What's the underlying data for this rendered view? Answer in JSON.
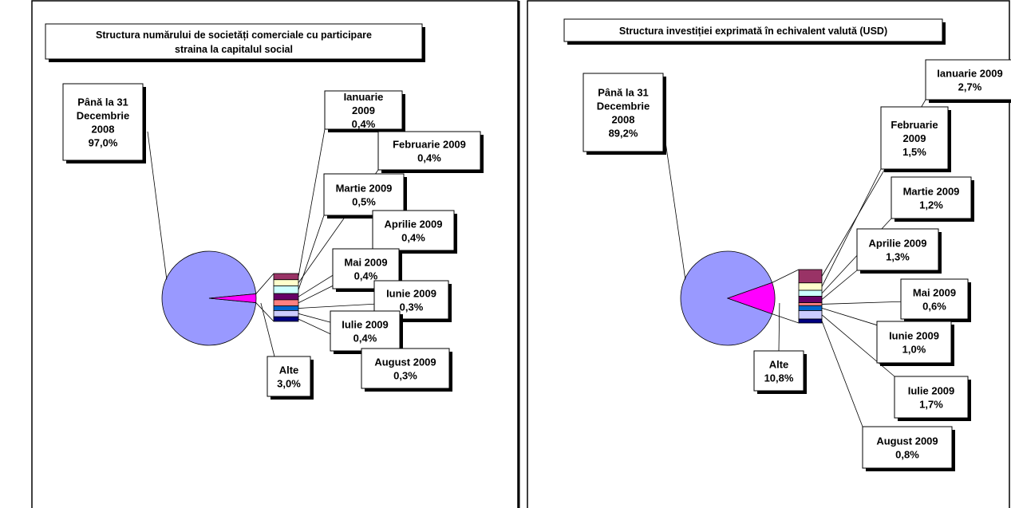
{
  "colors": {
    "main_slice": "#9999ff",
    "other_slice": "#ff00ff",
    "bar_colors": [
      "#993366",
      "#ffffcc",
      "#ccffff",
      "#660066",
      "#ff8080",
      "#0066cc",
      "#ccccff",
      "#000080"
    ]
  },
  "chart_data": [
    {
      "type": "pie",
      "subtype": "bar-of-pie",
      "title_lines": [
        "Structura numărului de societăți comerciale cu participare",
        "straina la capitalul social"
      ],
      "slices": [
        {
          "label_lines": [
            "Până la 31",
            "Decembrie",
            "2008"
          ],
          "value_text": "97,0%",
          "value": 97.0
        },
        {
          "label_lines": [
            "Alte"
          ],
          "value_text": "3,0%",
          "value": 3.0
        }
      ],
      "breakdown": [
        {
          "label": "Ianuarie 2009",
          "value_text": "0,4%",
          "value": 0.4
        },
        {
          "label": "Februarie 2009",
          "value_text": "0,4%",
          "value": 0.4
        },
        {
          "label": "Martie 2009",
          "value_text": "0,5%",
          "value": 0.5
        },
        {
          "label": "Aprilie 2009",
          "value_text": "0,4%",
          "value": 0.4
        },
        {
          "label": "Mai 2009",
          "value_text": "0,4%",
          "value": 0.4
        },
        {
          "label": "Iunie 2009",
          "value_text": "0,3%",
          "value": 0.3
        },
        {
          "label": "Iulie 2009",
          "value_text": "0,4%",
          "value": 0.4
        },
        {
          "label": "August 2009",
          "value_text": "0,3%",
          "value": 0.3
        }
      ]
    },
    {
      "type": "pie",
      "subtype": "bar-of-pie",
      "title_lines": [
        "Structura investiției exprimată în echivalent valută (USD)"
      ],
      "slices": [
        {
          "label_lines": [
            "Până la 31",
            "Decembrie",
            "2008"
          ],
          "value_text": "89,2%",
          "value": 89.2
        },
        {
          "label_lines": [
            "Alte"
          ],
          "value_text": "10,8%",
          "value": 10.8
        }
      ],
      "breakdown": [
        {
          "label": "Ianuarie 2009",
          "value_text": "2,7%",
          "value": 2.7
        },
        {
          "label": "Februarie 2009",
          "value_text": "1,5%",
          "value": 1.5
        },
        {
          "label": "Martie 2009",
          "value_text": "1,2%",
          "value": 1.2
        },
        {
          "label": "Aprilie 2009",
          "value_text": "1,3%",
          "value": 1.3
        },
        {
          "label": "Mai 2009",
          "value_text": "0,6%",
          "value": 0.6
        },
        {
          "label": "Iunie 2009",
          "value_text": "1,0%",
          "value": 1.0
        },
        {
          "label": "Iulie 2009",
          "value_text": "1,7%",
          "value": 1.7
        },
        {
          "label": "August 2009",
          "value_text": "0,8%",
          "value": 0.8
        }
      ]
    }
  ]
}
